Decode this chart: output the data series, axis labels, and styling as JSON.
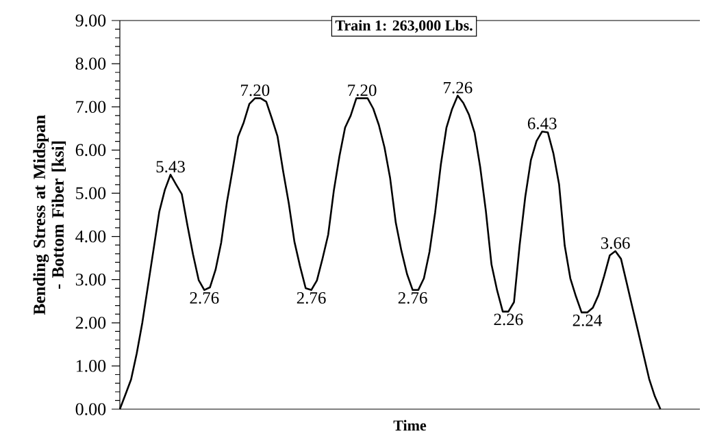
{
  "chart_data": {
    "type": "line",
    "title": "Train 1: 263,000 Lbs.",
    "xlabel": "Time",
    "ylabel": "Bending Stress at Midspan - Bottom Fiber [ksi]",
    "categories": [
      null,
      null,
      null,
      null,
      null,
      null,
      null,
      null,
      null,
      null,
      null,
      null,
      null,
      null,
      null,
      null,
      null,
      null,
      null,
      null,
      null,
      null,
      null,
      null,
      null,
      null,
      null,
      null,
      null,
      null,
      null,
      null,
      null,
      null,
      null,
      null,
      null,
      null,
      null,
      null,
      null,
      null,
      null,
      null,
      null,
      null,
      null,
      null,
      null,
      null,
      null,
      null,
      null,
      null,
      null,
      null,
      null,
      null,
      null,
      null,
      null,
      null,
      null,
      null,
      null,
      null,
      null,
      null,
      null,
      null,
      null,
      null,
      null,
      null,
      null,
      null,
      null,
      null,
      null,
      null,
      null,
      null,
      null,
      null,
      null,
      null,
      null,
      null,
      null,
      null,
      null,
      null,
      null,
      null,
      null,
      null,
      null
    ],
    "values": [
      0,
      0.34,
      0.69,
      1.29,
      2.01,
      2.86,
      3.71,
      4.57,
      5.08,
      5.43,
      5.2,
      4.98,
      4.26,
      3.58,
      2.99,
      2.76,
      2.82,
      3.23,
      3.86,
      4.78,
      5.53,
      6.31,
      6.64,
      7.07,
      7.2,
      7.2,
      7.12,
      6.73,
      6.32,
      5.51,
      4.77,
      3.88,
      3.31,
      2.8,
      2.76,
      2.98,
      3.49,
      4.04,
      5.06,
      5.86,
      6.52,
      6.8,
      7.2,
      7.2,
      7.2,
      6.96,
      6.58,
      6.06,
      5.35,
      4.32,
      3.67,
      3.13,
      2.76,
      2.76,
      3.03,
      3.65,
      4.56,
      5.66,
      6.52,
      6.95,
      7.26,
      7.09,
      6.82,
      6.4,
      5.6,
      4.59,
      3.35,
      2.75,
      2.26,
      2.26,
      2.48,
      3.8,
      4.92,
      5.77,
      6.21,
      6.43,
      6.41,
      5.92,
      5.21,
      3.79,
      3.03,
      2.61,
      2.24,
      2.24,
      2.35,
      2.64,
      3.08,
      3.56,
      3.66,
      3.48,
      2.93,
      2.37,
      1.82,
      1.26,
      0.7,
      0.3,
      0
    ],
    "value_labels": [
      null,
      null,
      null,
      null,
      null,
      null,
      null,
      null,
      null,
      "5.43",
      null,
      null,
      null,
      null,
      null,
      "2.76",
      null,
      null,
      null,
      null,
      null,
      null,
      null,
      null,
      "7.20",
      null,
      null,
      null,
      null,
      null,
      null,
      null,
      null,
      null,
      "2.76",
      null,
      null,
      null,
      null,
      null,
      null,
      null,
      null,
      "7.20",
      null,
      null,
      null,
      null,
      null,
      null,
      null,
      null,
      "2.76",
      null,
      null,
      null,
      null,
      null,
      null,
      null,
      "7.26",
      null,
      null,
      null,
      null,
      null,
      null,
      null,
      null,
      "2.26",
      null,
      null,
      null,
      null,
      null,
      "6.43",
      null,
      null,
      null,
      null,
      null,
      null,
      null,
      "2.24",
      null,
      null,
      null,
      null,
      "3.66",
      null,
      null,
      null,
      null,
      null,
      null,
      null,
      null
    ],
    "color": "#000000",
    "ylim": [
      0,
      9
    ],
    "yticks": [
      {
        "value": 0,
        "label": "0.00"
      },
      {
        "value": 1,
        "label": "1.00"
      },
      {
        "value": 2,
        "label": "2.00"
      },
      {
        "value": 3,
        "label": "3.00"
      },
      {
        "value": 4,
        "label": "4.00"
      },
      {
        "value": 5,
        "label": "5.00"
      },
      {
        "value": 6,
        "label": "6.00"
      },
      {
        "value": 7,
        "label": "7.00"
      },
      {
        "value": 8,
        "label": "8.00"
      },
      {
        "value": 9,
        "label": "9.00"
      }
    ],
    "grid": false,
    "marker": "none",
    "line_style": "solid"
  }
}
